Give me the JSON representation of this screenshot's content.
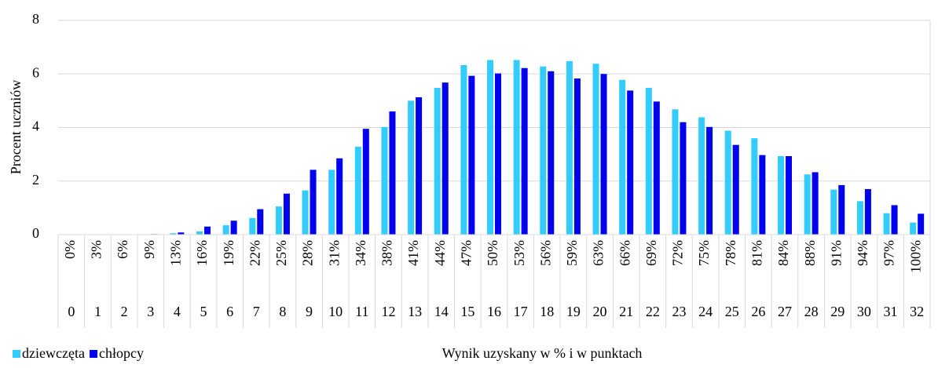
{
  "chart_data": {
    "type": "bar",
    "y_label": "Procent uczniów",
    "x_label": "Wynik uzyskany w % i w punktach",
    "categories": [
      "0%",
      "3%",
      "6%",
      "9%",
      "13%",
      "16%",
      "19%",
      "22%",
      "25%",
      "28%",
      "31%",
      "34%",
      "38%",
      "41%",
      "44%",
      "47%",
      "50%",
      "53%",
      "56%",
      "59%",
      "63%",
      "66%",
      "69%",
      "72%",
      "75%",
      "78%",
      "81%",
      "84%",
      "88%",
      "91%",
      "94%",
      "97%",
      "100%"
    ],
    "categories2": [
      "0",
      "1",
      "2",
      "3",
      "4",
      "5",
      "6",
      "7",
      "8",
      "9",
      "10",
      "11",
      "12",
      "13",
      "14",
      "15",
      "16",
      "17",
      "18",
      "19",
      "20",
      "21",
      "22",
      "23",
      "24",
      "25",
      "26",
      "27",
      "28",
      "29",
      "30",
      "31",
      "32"
    ],
    "series": [
      {
        "name": "dziewczęta",
        "color": "#33ccff",
        "values": [
          0,
          0,
          0,
          0,
          0.05,
          0.12,
          0.35,
          0.62,
          1.05,
          1.65,
          2.42,
          3.28,
          4.02,
          5.0,
          5.48,
          6.33,
          6.52,
          6.52,
          6.28,
          6.48,
          6.38,
          5.78,
          5.48,
          4.68,
          4.38,
          3.88,
          3.6,
          2.93,
          2.25,
          1.68,
          1.25,
          0.8,
          0.45
        ]
      },
      {
        "name": "chłopcy",
        "color": "#0000ee",
        "values": [
          0,
          0,
          0.01,
          0.02,
          0.08,
          0.3,
          0.52,
          0.95,
          1.53,
          2.42,
          2.85,
          3.95,
          4.6,
          5.13,
          5.68,
          5.93,
          6.02,
          6.22,
          6.1,
          5.83,
          6.0,
          5.38,
          4.97,
          4.2,
          4.02,
          3.35,
          2.97,
          2.93,
          2.33,
          1.85,
          1.7,
          1.1,
          0.78
        ]
      }
    ],
    "ylim": [
      0,
      8
    ],
    "yticks": [
      0,
      2,
      4,
      6,
      8
    ],
    "grid": true,
    "legend": "bottom-left"
  }
}
